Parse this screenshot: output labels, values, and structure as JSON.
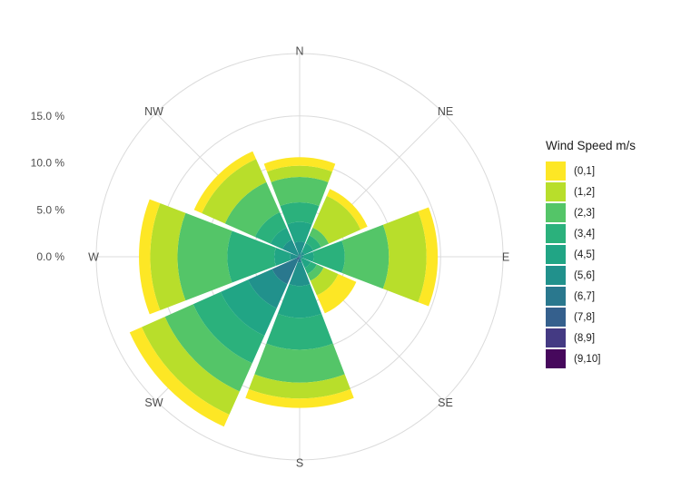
{
  "page": {
    "background": "#FFFFFF"
  },
  "chart_data": {
    "type": "bar",
    "coord": "polar",
    "description": "wind rose (stacked polar bar chart of wind speed frequency by direction)",
    "title": "",
    "legend_title": "Wind Speed m/s",
    "legend_position": "right",
    "grid": true,
    "stack_order": "highest-bin-innermost",
    "directions": [
      "N",
      "NE",
      "E",
      "SE",
      "S",
      "SW",
      "W",
      "NW"
    ],
    "bins": [
      {
        "label": "(0,1]",
        "color": "#FDE725"
      },
      {
        "label": "(1,2]",
        "color": "#B8DE2B"
      },
      {
        "label": "(2,3]",
        "color": "#54C568"
      },
      {
        "label": "(3,4]",
        "color": "#2BB17C"
      },
      {
        "label": "(4,5]",
        "color": "#21A585"
      },
      {
        "label": "(5,6]",
        "color": "#21918C"
      },
      {
        "label": "(6,7]",
        "color": "#2A788E"
      },
      {
        "label": "(7,8]",
        "color": "#35608D"
      },
      {
        "label": "(8,9]",
        "color": "#443A83"
      },
      {
        "label": "(9,10]",
        "color": "#46085C"
      }
    ],
    "series": [
      {
        "name": "(0,1]",
        "values": [
          0.9,
          0.8,
          1.2,
          2.1,
          1.0,
          1.4,
          1.2,
          0.9
        ]
      },
      {
        "name": "(1,2]",
        "values": [
          1.2,
          3.7,
          4.0,
          1.7,
          1.7,
          2.7,
          2.9,
          2.7
        ]
      },
      {
        "name": "(2,3]",
        "values": [
          2.7,
          0.9,
          4.7,
          0.8,
          3.5,
          3.3,
          5.3,
          3.5
        ]
      },
      {
        "name": "(3,4]",
        "values": [
          2.1,
          0.9,
          3.3,
          0.7,
          3.4,
          3.2,
          5.0,
          1.8
        ]
      },
      {
        "name": "(4,5]",
        "values": [
          2.1,
          1.0,
          1.1,
          1.0,
          3.4,
          3.2,
          1.7,
          1.4
        ]
      },
      {
        "name": "(5,6]",
        "values": [
          1.3,
          0.4,
          0.3,
          0.3,
          2.5,
          2.8,
          0.8,
          1.8
        ]
      },
      {
        "name": "(6,7]",
        "values": [
          0.3,
          0.2,
          0.1,
          0.0,
          0.4,
          2.8,
          0.2,
          0.2
        ]
      },
      {
        "name": "(7,8]",
        "values": [
          0.0,
          0.0,
          0.0,
          0.0,
          0.2,
          0.4,
          0.0,
          0.0
        ]
      },
      {
        "name": "(8,9]",
        "values": [
          0,
          0,
          0,
          0,
          0,
          0,
          0,
          0
        ]
      },
      {
        "name": "(9,10]",
        "values": [
          0,
          0,
          0,
          0,
          0,
          0,
          0,
          0
        ]
      }
    ],
    "r_axis": {
      "tick_labels": [
        "0.0 %",
        "5.0 %",
        "10.0 %",
        "15.0 %"
      ],
      "ticks": [
        0,
        5,
        10,
        15
      ],
      "units": "percent",
      "max_shown": 21.6
    }
  }
}
